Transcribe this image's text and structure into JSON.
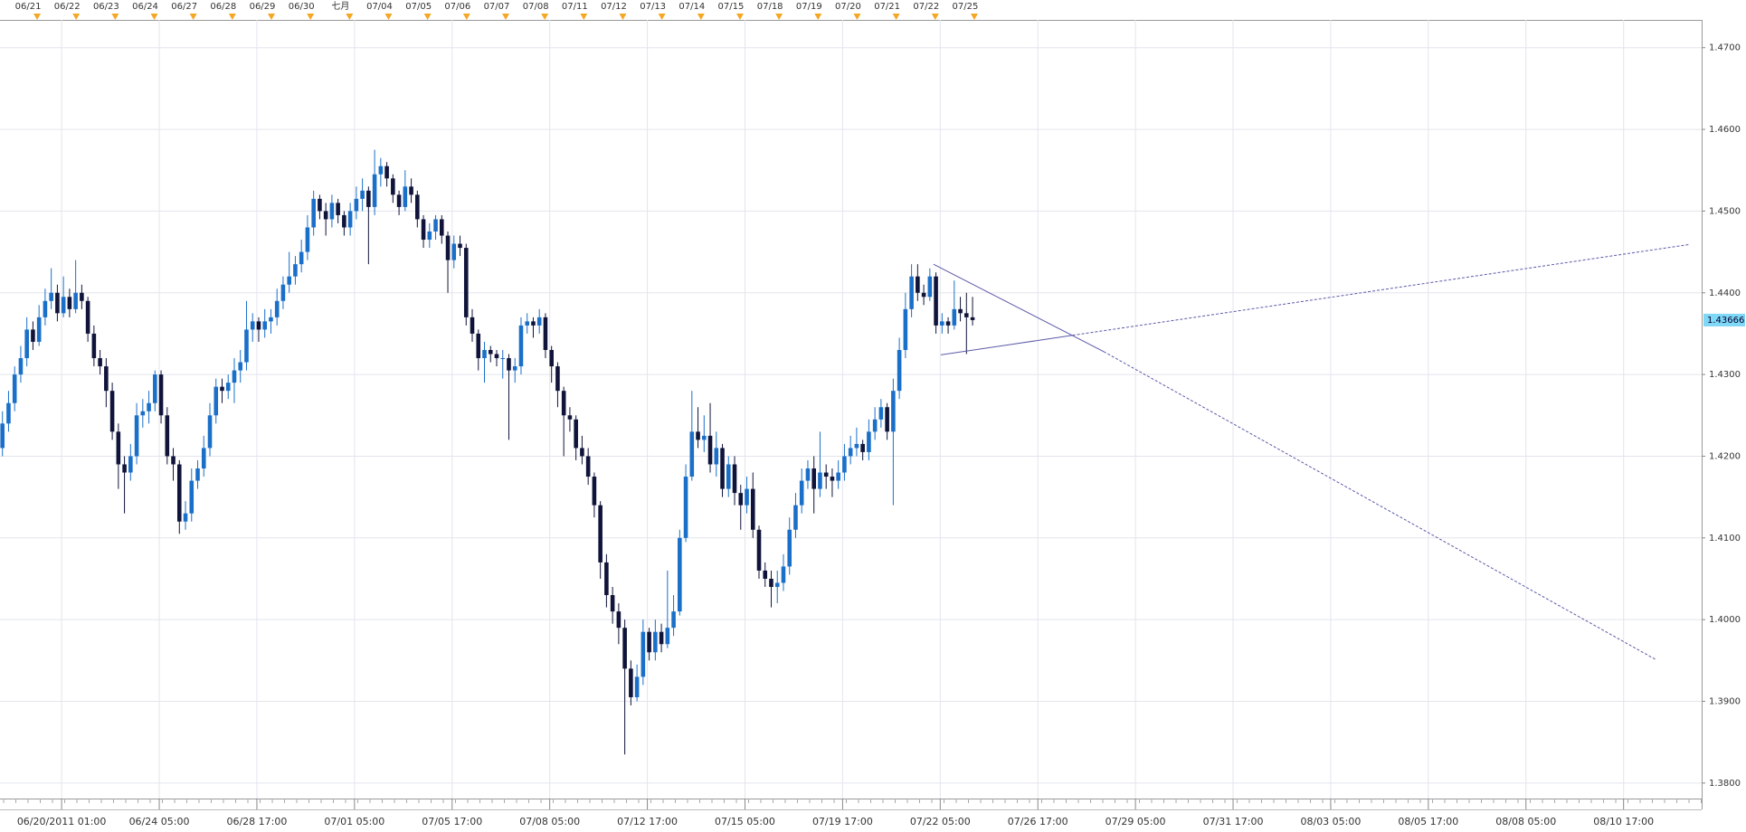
{
  "chart_data": {
    "type": "candlestick",
    "ylim": [
      1.3781,
      1.4734
    ],
    "yticks": [
      {
        "value": 1.38,
        "label": "1.3800"
      },
      {
        "value": 1.39,
        "label": "1.3900"
      },
      {
        "value": 1.4,
        "label": "1.4000"
      },
      {
        "value": 1.41,
        "label": "1.4100"
      },
      {
        "value": 1.42,
        "label": "1.4200"
      },
      {
        "value": 1.43,
        "label": "1.4300"
      },
      {
        "value": 1.44,
        "label": "1.4400"
      },
      {
        "value": 1.45,
        "label": "1.4500"
      },
      {
        "value": 1.46,
        "label": "1.4600"
      },
      {
        "value": 1.47,
        "label": "1.4700"
      }
    ],
    "xlim": [
      -0.4,
      278.5
    ],
    "xticks": [
      {
        "value": 9.7,
        "label": "06/20/2011 01:00"
      },
      {
        "value": 25.7,
        "label": "06/24 05:00"
      },
      {
        "value": 41.7,
        "label": "06/28 17:00"
      },
      {
        "value": 57.7,
        "label": "07/01 05:00"
      },
      {
        "value": 73.7,
        "label": "07/05 17:00"
      },
      {
        "value": 89.7,
        "label": "07/08 05:00"
      },
      {
        "value": 105.7,
        "label": "07/12 17:00"
      },
      {
        "value": 121.7,
        "label": "07/15 05:00"
      },
      {
        "value": 137.7,
        "label": "07/19 17:00"
      },
      {
        "value": 153.7,
        "label": "07/22 05:00"
      },
      {
        "value": 169.7,
        "label": "07/26 17:00"
      },
      {
        "value": 185.7,
        "label": "07/29 05:00"
      },
      {
        "value": 201.7,
        "label": "07/31 17:00"
      },
      {
        "value": 217.7,
        "label": "08/03 05:00"
      },
      {
        "value": 233.7,
        "label": "08/05 17:00"
      },
      {
        "value": 249.7,
        "label": "08/08 05:00"
      },
      {
        "value": 265.7,
        "label": "08/10 17:00"
      }
    ],
    "top_xticks": [
      {
        "value": 4.2,
        "label": "06/21"
      },
      {
        "value": 10.6,
        "label": "06/22"
      },
      {
        "value": 17.0,
        "label": "06/23"
      },
      {
        "value": 23.4,
        "label": "06/24"
      },
      {
        "value": 29.8,
        "label": "06/27"
      },
      {
        "value": 36.2,
        "label": "06/28"
      },
      {
        "value": 42.6,
        "label": "06/29"
      },
      {
        "value": 49.0,
        "label": "06/30"
      },
      {
        "value": 55.4,
        "label": "七月"
      },
      {
        "value": 61.8,
        "label": "07/04"
      },
      {
        "value": 68.2,
        "label": "07/05"
      },
      {
        "value": 74.6,
        "label": "07/06"
      },
      {
        "value": 81.0,
        "label": "07/07"
      },
      {
        "value": 87.4,
        "label": "07/08"
      },
      {
        "value": 93.8,
        "label": "07/11"
      },
      {
        "value": 100.2,
        "label": "07/12"
      },
      {
        "value": 106.6,
        "label": "07/13"
      },
      {
        "value": 113.0,
        "label": "07/14"
      },
      {
        "value": 119.4,
        "label": "07/15"
      },
      {
        "value": 125.8,
        "label": "07/18"
      },
      {
        "value": 132.2,
        "label": "07/19"
      },
      {
        "value": 138.6,
        "label": "07/20"
      },
      {
        "value": 145.0,
        "label": "07/21"
      },
      {
        "value": 151.4,
        "label": "07/22"
      },
      {
        "value": 157.8,
        "label": "07/25"
      }
    ],
    "grid": true,
    "up_color": "#1a6fc9",
    "down_color": "#10143a",
    "marker_color": "#f5a623",
    "trendline_color": "#5a5aa8",
    "price_box_color": "#7fd8f5",
    "last_price": 1.43666,
    "trendlines": [
      {
        "x": [
          152.6,
          180.5,
          271.0
        ],
        "y": [
          1.4435,
          1.4328,
          1.3951
        ]
      },
      {
        "x": [
          153.8,
          175.4,
          276.4
        ],
        "y": [
          1.4324,
          1.4348,
          1.4459
        ]
      }
    ],
    "ohlc": [
      [
        1.421,
        1.4255,
        1.42,
        1.424
      ],
      [
        1.424,
        1.428,
        1.423,
        1.4265
      ],
      [
        1.4265,
        1.431,
        1.4255,
        1.43
      ],
      [
        1.43,
        1.4335,
        1.429,
        1.432
      ],
      [
        1.432,
        1.437,
        1.431,
        1.4355
      ],
      [
        1.4355,
        1.4365,
        1.433,
        1.434
      ],
      [
        1.434,
        1.4385,
        1.4335,
        1.437
      ],
      [
        1.437,
        1.4405,
        1.436,
        1.439
      ],
      [
        1.439,
        1.443,
        1.438,
        1.44
      ],
      [
        1.44,
        1.441,
        1.4365,
        1.4375
      ],
      [
        1.4375,
        1.442,
        1.437,
        1.4395
      ],
      [
        1.4395,
        1.4405,
        1.437,
        1.438
      ],
      [
        1.438,
        1.444,
        1.4375,
        1.44
      ],
      [
        1.44,
        1.441,
        1.438,
        1.439
      ],
      [
        1.439,
        1.4395,
        1.434,
        1.435
      ],
      [
        1.435,
        1.436,
        1.431,
        1.432
      ],
      [
        1.432,
        1.433,
        1.43,
        1.431
      ],
      [
        1.431,
        1.432,
        1.426,
        1.428
      ],
      [
        1.428,
        1.429,
        1.422,
        1.423
      ],
      [
        1.423,
        1.424,
        1.416,
        1.419
      ],
      [
        1.419,
        1.42,
        1.413,
        1.418
      ],
      [
        1.418,
        1.4215,
        1.417,
        1.42
      ],
      [
        1.42,
        1.4265,
        1.419,
        1.425
      ],
      [
        1.425,
        1.427,
        1.4235,
        1.4255
      ],
      [
        1.4255,
        1.428,
        1.424,
        1.4265
      ],
      [
        1.4265,
        1.4305,
        1.4255,
        1.43
      ],
      [
        1.43,
        1.4305,
        1.424,
        1.425
      ],
      [
        1.425,
        1.426,
        1.419,
        1.42
      ],
      [
        1.42,
        1.421,
        1.417,
        1.419
      ],
      [
        1.419,
        1.4195,
        1.4105,
        1.412
      ],
      [
        1.412,
        1.4145,
        1.411,
        1.413
      ],
      [
        1.413,
        1.4185,
        1.412,
        1.417
      ],
      [
        1.417,
        1.4195,
        1.416,
        1.4185
      ],
      [
        1.4185,
        1.4225,
        1.4175,
        1.421
      ],
      [
        1.421,
        1.4265,
        1.42,
        1.425
      ],
      [
        1.425,
        1.4295,
        1.424,
        1.4285
      ],
      [
        1.4285,
        1.4295,
        1.4265,
        1.428
      ],
      [
        1.428,
        1.43,
        1.427,
        1.429
      ],
      [
        1.429,
        1.432,
        1.4265,
        1.4305
      ],
      [
        1.4305,
        1.433,
        1.429,
        1.4315
      ],
      [
        1.4315,
        1.439,
        1.4305,
        1.4355
      ],
      [
        1.4355,
        1.4375,
        1.434,
        1.4365
      ],
      [
        1.4365,
        1.437,
        1.434,
        1.4355
      ],
      [
        1.4355,
        1.438,
        1.4345,
        1.4365
      ],
      [
        1.4365,
        1.438,
        1.435,
        1.437
      ],
      [
        1.437,
        1.4405,
        1.436,
        1.439
      ],
      [
        1.439,
        1.442,
        1.438,
        1.441
      ],
      [
        1.441,
        1.445,
        1.44,
        1.442
      ],
      [
        1.442,
        1.4445,
        1.441,
        1.4435
      ],
      [
        1.4435,
        1.4465,
        1.4425,
        1.445
      ],
      [
        1.445,
        1.4495,
        1.444,
        1.448
      ],
      [
        1.448,
        1.4525,
        1.447,
        1.4515
      ],
      [
        1.4515,
        1.452,
        1.449,
        1.45
      ],
      [
        1.45,
        1.451,
        1.447,
        1.449
      ],
      [
        1.449,
        1.452,
        1.448,
        1.451
      ],
      [
        1.451,
        1.4515,
        1.4485,
        1.4495
      ],
      [
        1.4495,
        1.45,
        1.447,
        1.448
      ],
      [
        1.448,
        1.451,
        1.447,
        1.45
      ],
      [
        1.45,
        1.453,
        1.449,
        1.4515
      ],
      [
        1.4515,
        1.454,
        1.45,
        1.4525
      ],
      [
        1.4525,
        1.453,
        1.4435,
        1.4505
      ],
      [
        1.4505,
        1.4575,
        1.4495,
        1.4545
      ],
      [
        1.4545,
        1.4565,
        1.453,
        1.4555
      ],
      [
        1.4555,
        1.456,
        1.453,
        1.454
      ],
      [
        1.454,
        1.4545,
        1.451,
        1.452
      ],
      [
        1.452,
        1.4525,
        1.4495,
        1.4505
      ],
      [
        1.4505,
        1.455,
        1.45,
        1.453
      ],
      [
        1.453,
        1.454,
        1.451,
        1.452
      ],
      [
        1.452,
        1.4525,
        1.448,
        1.449
      ],
      [
        1.449,
        1.4495,
        1.4455,
        1.4465
      ],
      [
        1.4465,
        1.4485,
        1.4455,
        1.4475
      ],
      [
        1.4475,
        1.4495,
        1.4465,
        1.449
      ],
      [
        1.449,
        1.4495,
        1.446,
        1.447
      ],
      [
        1.447,
        1.4475,
        1.44,
        1.444
      ],
      [
        1.444,
        1.447,
        1.443,
        1.446
      ],
      [
        1.446,
        1.447,
        1.4445,
        1.4455
      ],
      [
        1.4455,
        1.446,
        1.436,
        1.437
      ],
      [
        1.437,
        1.438,
        1.434,
        1.435
      ],
      [
        1.435,
        1.4355,
        1.4305,
        1.432
      ],
      [
        1.432,
        1.434,
        1.429,
        1.433
      ],
      [
        1.433,
        1.4335,
        1.4315,
        1.4325
      ],
      [
        1.4325,
        1.433,
        1.431,
        1.432
      ],
      [
        1.432,
        1.433,
        1.4295,
        1.432
      ],
      [
        1.432,
        1.4325,
        1.422,
        1.4305
      ],
      [
        1.4305,
        1.432,
        1.429,
        1.431
      ],
      [
        1.431,
        1.437,
        1.43,
        1.436
      ],
      [
        1.436,
        1.4375,
        1.435,
        1.4365
      ],
      [
        1.4365,
        1.437,
        1.4345,
        1.436
      ],
      [
        1.436,
        1.438,
        1.435,
        1.437
      ],
      [
        1.437,
        1.4375,
        1.432,
        1.433
      ],
      [
        1.433,
        1.4335,
        1.429,
        1.431
      ],
      [
        1.431,
        1.4315,
        1.426,
        1.428
      ],
      [
        1.428,
        1.4285,
        1.42,
        1.425
      ],
      [
        1.425,
        1.426,
        1.423,
        1.4245
      ],
      [
        1.4245,
        1.425,
        1.4195,
        1.421
      ],
      [
        1.421,
        1.4225,
        1.419,
        1.42
      ],
      [
        1.42,
        1.421,
        1.4165,
        1.4175
      ],
      [
        1.4175,
        1.418,
        1.4125,
        1.414
      ],
      [
        1.414,
        1.4145,
        1.405,
        1.407
      ],
      [
        1.407,
        1.408,
        1.4015,
        1.403
      ],
      [
        1.403,
        1.404,
        1.3995,
        1.401
      ],
      [
        1.401,
        1.402,
        1.397,
        1.399
      ],
      [
        1.399,
        1.4,
        1.3835,
        1.394
      ],
      [
        1.394,
        1.395,
        1.3895,
        1.3905
      ],
      [
        1.3905,
        1.3945,
        1.39,
        1.393
      ],
      [
        1.393,
        1.4,
        1.392,
        1.3985
      ],
      [
        1.3985,
        1.399,
        1.395,
        1.396
      ],
      [
        1.396,
        1.4,
        1.395,
        1.3985
      ],
      [
        1.3985,
        1.3995,
        1.396,
        1.397
      ],
      [
        1.397,
        1.406,
        1.3965,
        1.399
      ],
      [
        1.399,
        1.403,
        1.398,
        1.401
      ],
      [
        1.401,
        1.411,
        1.4005,
        1.41
      ],
      [
        1.41,
        1.419,
        1.4095,
        1.4175
      ],
      [
        1.4175,
        1.428,
        1.417,
        1.423
      ],
      [
        1.423,
        1.426,
        1.421,
        1.422
      ],
      [
        1.422,
        1.425,
        1.4205,
        1.4225
      ],
      [
        1.4225,
        1.4265,
        1.418,
        1.419
      ],
      [
        1.419,
        1.423,
        1.4175,
        1.421
      ],
      [
        1.421,
        1.4215,
        1.415,
        1.416
      ],
      [
        1.416,
        1.42,
        1.415,
        1.419
      ],
      [
        1.419,
        1.42,
        1.414,
        1.4155
      ],
      [
        1.4155,
        1.4165,
        1.411,
        1.414
      ],
      [
        1.414,
        1.4175,
        1.413,
        1.416
      ],
      [
        1.416,
        1.418,
        1.41,
        1.411
      ],
      [
        1.411,
        1.4115,
        1.405,
        1.406
      ],
      [
        1.406,
        1.407,
        1.404,
        1.405
      ],
      [
        1.405,
        1.406,
        1.4015,
        1.404
      ],
      [
        1.404,
        1.406,
        1.402,
        1.4045
      ],
      [
        1.4045,
        1.408,
        1.4035,
        1.4065
      ],
      [
        1.4065,
        1.4125,
        1.4055,
        1.411
      ],
      [
        1.411,
        1.4155,
        1.41,
        1.414
      ],
      [
        1.414,
        1.4185,
        1.413,
        1.417
      ],
      [
        1.417,
        1.4195,
        1.416,
        1.4185
      ],
      [
        1.4185,
        1.42,
        1.413,
        1.416
      ],
      [
        1.416,
        1.423,
        1.415,
        1.418
      ],
      [
        1.418,
        1.419,
        1.416,
        1.4175
      ],
      [
        1.4175,
        1.4185,
        1.415,
        1.417
      ],
      [
        1.417,
        1.4195,
        1.416,
        1.418
      ],
      [
        1.418,
        1.4215,
        1.417,
        1.42
      ],
      [
        1.42,
        1.4225,
        1.419,
        1.421
      ],
      [
        1.421,
        1.4235,
        1.42,
        1.4215
      ],
      [
        1.4215,
        1.422,
        1.4195,
        1.4205
      ],
      [
        1.4205,
        1.4245,
        1.4195,
        1.423
      ],
      [
        1.423,
        1.426,
        1.422,
        1.4245
      ],
      [
        1.4245,
        1.427,
        1.4235,
        1.426
      ],
      [
        1.426,
        1.4265,
        1.422,
        1.423
      ],
      [
        1.423,
        1.4295,
        1.414,
        1.428
      ],
      [
        1.428,
        1.4345,
        1.427,
        1.433
      ],
      [
        1.433,
        1.44,
        1.432,
        1.438
      ],
      [
        1.438,
        1.4435,
        1.437,
        1.442
      ],
      [
        1.442,
        1.4435,
        1.439,
        1.44
      ],
      [
        1.44,
        1.441,
        1.4385,
        1.4395
      ],
      [
        1.4395,
        1.443,
        1.439,
        1.442
      ],
      [
        1.442,
        1.4425,
        1.435,
        1.436
      ],
      [
        1.436,
        1.4375,
        1.435,
        1.4365
      ],
      [
        1.4365,
        1.437,
        1.435,
        1.436
      ],
      [
        1.436,
        1.4415,
        1.4355,
        1.438
      ],
      [
        1.438,
        1.4395,
        1.4365,
        1.4375
      ],
      [
        1.4375,
        1.44,
        1.4325,
        1.437
      ],
      [
        1.437,
        1.4395,
        1.436,
        1.43666
      ]
    ]
  }
}
